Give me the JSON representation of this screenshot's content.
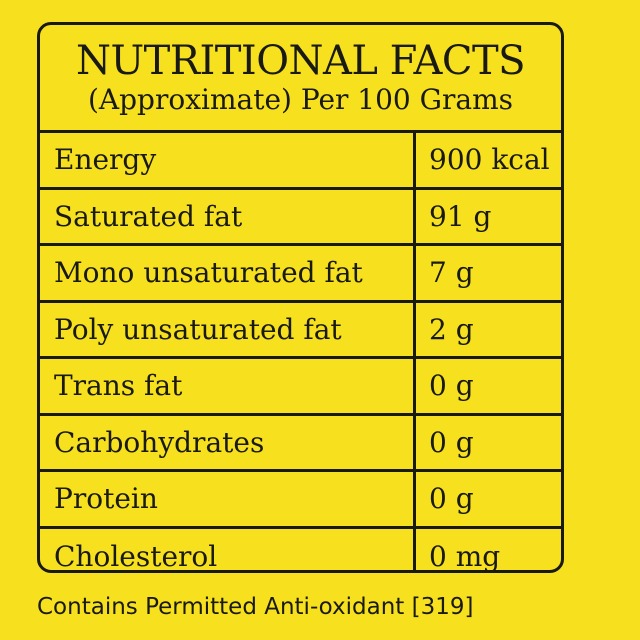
{
  "panel": {
    "title": "NUTRITIONAL FACTS",
    "subtitle": "(Approximate) Per 100 Grams"
  },
  "rows": [
    {
      "name": "Energy",
      "value": "900 kcal"
    },
    {
      "name": "Saturated fat",
      "value": "91 g"
    },
    {
      "name": "Mono unsaturated fat",
      "value": "7 g"
    },
    {
      "name": "Poly unsaturated fat",
      "value": "2 g"
    },
    {
      "name": "Trans fat",
      "value": "0 g"
    },
    {
      "name": "Carbohydrates",
      "value": "0 g"
    },
    {
      "name": "Protein",
      "value": "0 g"
    },
    {
      "name": "Cholesterol",
      "value": "0 mg"
    }
  ],
  "footer": "Contains Permitted Anti-oxidant [319]",
  "colors": {
    "background": "#f7e01e",
    "ink": "#1a1a14"
  }
}
